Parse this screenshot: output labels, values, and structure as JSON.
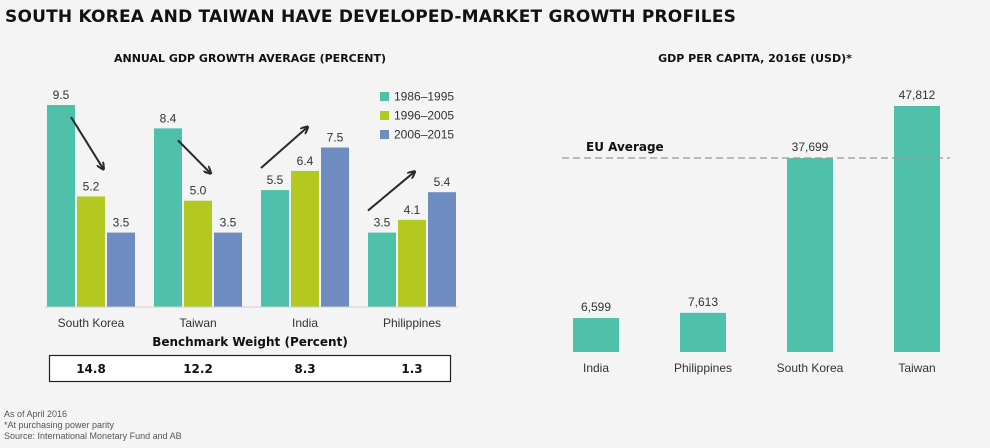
{
  "title": "SOUTH KOREA AND TAIWAN HAVE DEVELOPED-MARKET GROWTH PROFILES",
  "colors": {
    "teal": "#4fc0aa",
    "green": "#b4c822",
    "blue": "#6e8cc0",
    "dashed_line": "#999999",
    "arrow": "#2a2a2a"
  },
  "chart_data": [
    {
      "type": "bar",
      "title": "ANNUAL GDP GROWTH AVERAGE (PERCENT)",
      "categories": [
        "South Korea",
        "Taiwan",
        "India",
        "Philippines"
      ],
      "series": [
        {
          "name": "1986–1995",
          "color": "#4fc0aa",
          "values": [
            9.5,
            8.4,
            5.5,
            3.5
          ]
        },
        {
          "name": "1996–2005",
          "color": "#b4c822",
          "values": [
            5.2,
            5.0,
            6.4,
            4.1
          ]
        },
        {
          "name": "2006–2015",
          "color": "#6e8cc0",
          "values": [
            3.5,
            3.5,
            7.5,
            5.4
          ]
        }
      ],
      "value_labels": [
        [
          "9.5",
          "5.2",
          "3.5"
        ],
        [
          "8.4",
          "5.0",
          "3.5"
        ],
        [
          "5.5",
          "6.4",
          "7.5"
        ],
        [
          "3.5",
          "4.1",
          "5.4"
        ]
      ],
      "ylim": [
        0,
        9.5
      ],
      "legend_position": "top-right",
      "arrows": [
        "down",
        "down",
        "up",
        "up"
      ],
      "benchmark": {
        "label": "Benchmark Weight (Percent)",
        "values": [
          "14.8",
          "12.2",
          "8.3",
          "1.3"
        ]
      }
    },
    {
      "type": "bar",
      "title": "GDP PER CAPITA, 2016E (USD)*",
      "categories": [
        "India",
        "Philippines",
        "South Korea",
        "Taiwan"
      ],
      "values": [
        6599,
        7613,
        37699,
        47812
      ],
      "value_labels": [
        "6,599",
        "7,613",
        "37,699",
        "47,812"
      ],
      "ylim": [
        0,
        47812
      ],
      "reference_line": {
        "label": "EU Average",
        "value": 37699
      }
    }
  ],
  "footnotes": [
    "As of April 2016",
    "*At purchasing power parity",
    "Source: International Monetary Fund and AB"
  ]
}
